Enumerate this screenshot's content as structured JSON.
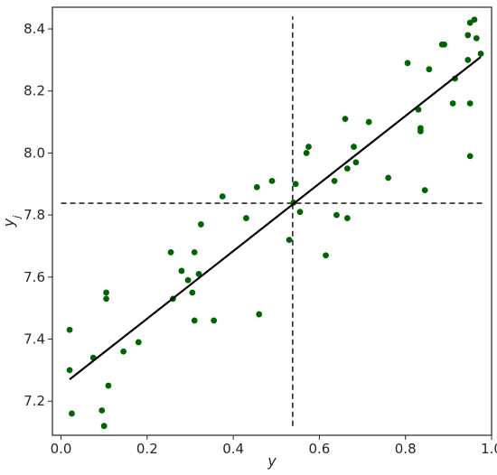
{
  "chart_data": {
    "type": "scatter",
    "title": "",
    "xlabel": "y",
    "ylabel": "y_j",
    "xlim": [
      -0.02,
      1.0
    ],
    "ylim": [
      7.09,
      8.47
    ],
    "xticks": [
      0.0,
      0.2,
      0.4,
      0.6,
      0.8,
      1.0
    ],
    "xtick_labels": [
      "0.0",
      "0.2",
      "0.4",
      "0.6",
      "0.8",
      "1.0"
    ],
    "yticks": [
      7.2,
      7.4,
      7.6,
      7.8,
      8.0,
      8.2,
      8.4
    ],
    "ytick_labels": [
      "7.2",
      "7.4",
      "7.6",
      "7.8",
      "8.0",
      "8.2",
      "8.4"
    ],
    "grid": false,
    "point_color": "#006400",
    "line_color": "#000000",
    "series": [
      {
        "values": [
          [
            0.02,
            7.43
          ],
          [
            0.02,
            7.3
          ],
          [
            0.025,
            7.16
          ],
          [
            0.075,
            7.34
          ],
          [
            0.095,
            7.17
          ],
          [
            0.1,
            7.12
          ],
          [
            0.105,
            7.53
          ],
          [
            0.105,
            7.55
          ],
          [
            0.11,
            7.25
          ],
          [
            0.145,
            7.36
          ],
          [
            0.18,
            7.39
          ],
          [
            0.255,
            7.68
          ],
          [
            0.26,
            7.53
          ],
          [
            0.28,
            7.62
          ],
          [
            0.295,
            7.59
          ],
          [
            0.305,
            7.55
          ],
          [
            0.31,
            7.68
          ],
          [
            0.31,
            7.46
          ],
          [
            0.32,
            7.61
          ],
          [
            0.325,
            7.77
          ],
          [
            0.355,
            7.46
          ],
          [
            0.375,
            7.86
          ],
          [
            0.43,
            7.79
          ],
          [
            0.455,
            7.89
          ],
          [
            0.46,
            7.48
          ],
          [
            0.49,
            7.91
          ],
          [
            0.53,
            7.72
          ],
          [
            0.54,
            7.84
          ],
          [
            0.545,
            7.9
          ],
          [
            0.555,
            7.81
          ],
          [
            0.57,
            8.0
          ],
          [
            0.575,
            8.02
          ],
          [
            0.615,
            7.67
          ],
          [
            0.635,
            7.91
          ],
          [
            0.64,
            7.8
          ],
          [
            0.66,
            8.11
          ],
          [
            0.665,
            7.79
          ],
          [
            0.665,
            7.95
          ],
          [
            0.68,
            8.02
          ],
          [
            0.685,
            7.97
          ],
          [
            0.715,
            8.1
          ],
          [
            0.76,
            7.92
          ],
          [
            0.805,
            8.29
          ],
          [
            0.83,
            8.14
          ],
          [
            0.835,
            8.07
          ],
          [
            0.835,
            8.08
          ],
          [
            0.845,
            7.88
          ],
          [
            0.855,
            8.27
          ],
          [
            0.885,
            8.35
          ],
          [
            0.89,
            8.35
          ],
          [
            0.91,
            8.16
          ],
          [
            0.915,
            8.24
          ],
          [
            0.945,
            8.3
          ],
          [
            0.945,
            8.38
          ],
          [
            0.95,
            8.42
          ],
          [
            0.95,
            8.16
          ],
          [
            0.95,
            7.99
          ],
          [
            0.96,
            8.43
          ],
          [
            0.965,
            8.37
          ],
          [
            0.975,
            8.32
          ]
        ]
      }
    ],
    "fit_line": {
      "x": [
        0.02,
        0.975
      ],
      "y": [
        7.27,
        8.31
      ]
    },
    "mean_lines": {
      "vertical": {
        "x": 0.538,
        "y_range": [
          7.12,
          8.44
        ]
      },
      "horizontal": {
        "y": 7.838,
        "x_range": [
          0.0,
          0.98
        ]
      }
    }
  }
}
